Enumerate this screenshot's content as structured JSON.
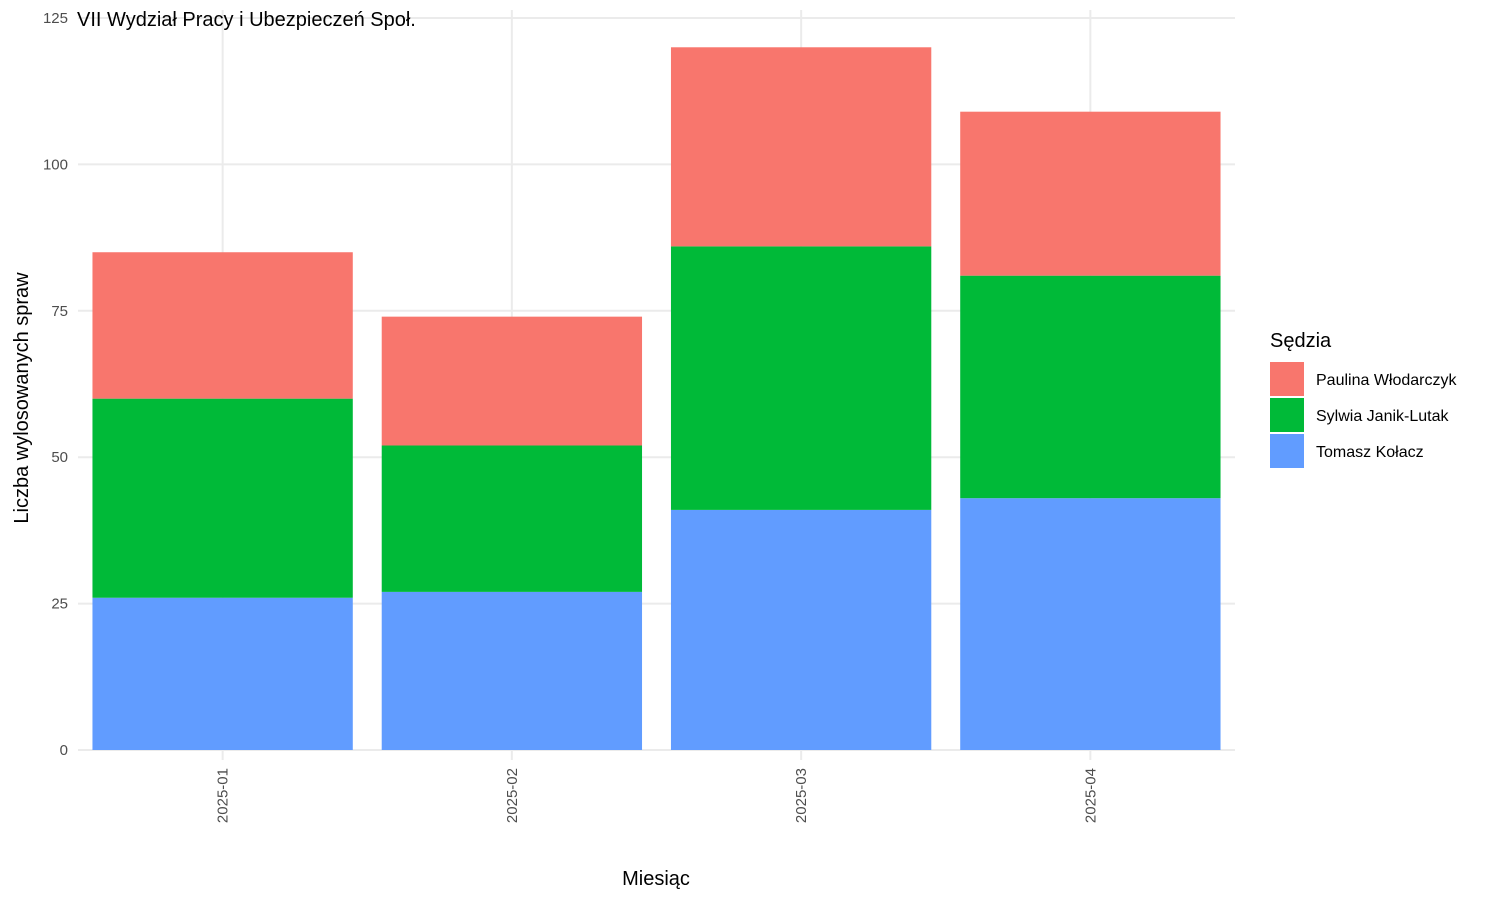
{
  "chart_data": {
    "type": "bar",
    "stacked": true,
    "title": "VII Wydział Pracy i Ubezpieczeń Społ.",
    "xlabel": "Miesiąc",
    "ylabel": "Liczba wylosowanych spraw",
    "categories": [
      "2025-01",
      "2025-02",
      "2025-03",
      "2025-04"
    ],
    "ylim": [
      0,
      125
    ],
    "yticks": [
      0,
      25,
      50,
      75,
      100,
      125
    ],
    "grid": true,
    "legend": {
      "title": "Sędzia",
      "position": "right"
    },
    "series": [
      {
        "name": "Tomasz Kołacz",
        "color": "#619CFF",
        "values": [
          26,
          27,
          41,
          43
        ]
      },
      {
        "name": "Sylwia Janik-Lutak",
        "color": "#00BA38",
        "values": [
          34,
          25,
          45,
          38
        ]
      },
      {
        "name": "Paulina Włodarczyk",
        "color": "#F8766D",
        "values": [
          25,
          22,
          34,
          28
        ]
      }
    ],
    "legend_order": [
      "Paulina Włodarczyk",
      "Sylwia Janik-Lutak",
      "Tomasz Kołacz"
    ]
  }
}
